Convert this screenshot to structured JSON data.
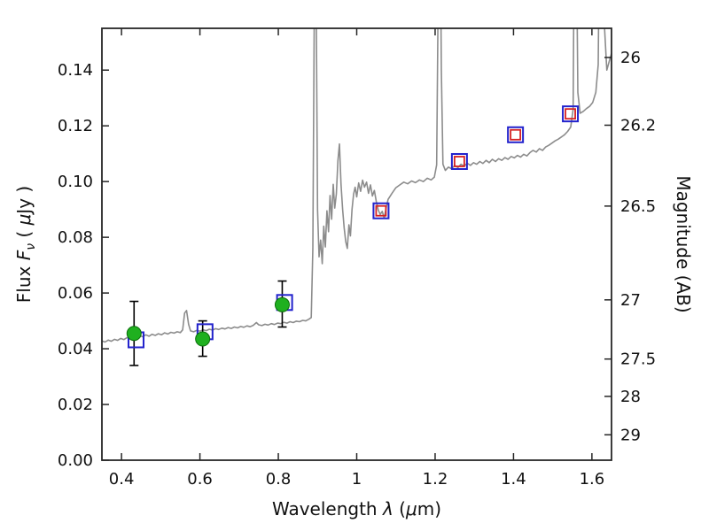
{
  "chart_data": {
    "type": "line+scatter",
    "title": "",
    "xlabel_parts": [
      {
        "t": "Wavelength  ",
        "style": "n"
      },
      {
        "t": "λ",
        "style": "i"
      },
      {
        "t": " (",
        "style": "n"
      },
      {
        "t": "μ",
        "style": "i"
      },
      {
        "t": "m)",
        "style": "n"
      }
    ],
    "ylabel_left_parts": [
      {
        "t": "Flux  ",
        "style": "n"
      },
      {
        "t": "F",
        "style": "i"
      },
      {
        "t": "ν",
        "style": "sub"
      },
      {
        "t": "  ( ",
        "style": "n"
      },
      {
        "t": "μ",
        "style": "i"
      },
      {
        "t": "Jy )",
        "style": "n"
      }
    ],
    "ylabel_right": "Magnitude (AB)",
    "xlim": [
      0.35,
      1.65
    ],
    "ylim": [
      0.0,
      0.155
    ],
    "x_ticks": [
      {
        "v": 0.4,
        "label": "0.4"
      },
      {
        "v": 0.6,
        "label": "0.6"
      },
      {
        "v": 0.8,
        "label": "0.8"
      },
      {
        "v": 1.0,
        "label": "1"
      },
      {
        "v": 1.2,
        "label": "1.2"
      },
      {
        "v": 1.4,
        "label": "1.4"
      },
      {
        "v": 1.6,
        "label": "1.6"
      }
    ],
    "y_ticks_left": [
      {
        "v": 0.0,
        "label": "0.00"
      },
      {
        "v": 0.02,
        "label": "0.02"
      },
      {
        "v": 0.04,
        "label": "0.04"
      },
      {
        "v": 0.06,
        "label": "0.06"
      },
      {
        "v": 0.08,
        "label": "0.08"
      },
      {
        "v": 0.1,
        "label": "0.10"
      },
      {
        "v": 0.12,
        "label": "0.12"
      },
      {
        "v": 0.14,
        "label": "0.14"
      }
    ],
    "mag_zeropoint": 23.9,
    "y_ticks_right": [
      {
        "m": 26.0,
        "label": "26"
      },
      {
        "m": 26.2,
        "label": "26.2"
      },
      {
        "m": 26.5,
        "label": "26.5"
      },
      {
        "m": 27.0,
        "label": "27"
      },
      {
        "m": 27.5,
        "label": "27.5"
      },
      {
        "m": 28.0,
        "label": "28"
      },
      {
        "m": 29.0,
        "label": "29"
      }
    ],
    "colors": {
      "spectrum": "#8c8c8c",
      "frame": "#262626",
      "tick_label": "#111111",
      "errorbar": "#000000",
      "green_fill": "#1fb01f",
      "green_edge": "#0b6e0b",
      "blue_square": "#2222cc",
      "red_square": "#d62222"
    },
    "spectrum_points": [
      [
        0.35,
        0.0428
      ],
      [
        0.358,
        0.0424
      ],
      [
        0.366,
        0.0431
      ],
      [
        0.374,
        0.0427
      ],
      [
        0.382,
        0.0434
      ],
      [
        0.39,
        0.043
      ],
      [
        0.398,
        0.0437
      ],
      [
        0.406,
        0.0433
      ],
      [
        0.414,
        0.044
      ],
      [
        0.422,
        0.0437
      ],
      [
        0.43,
        0.0443
      ],
      [
        0.438,
        0.044
      ],
      [
        0.446,
        0.0447
      ],
      [
        0.454,
        0.0443
      ],
      [
        0.462,
        0.045
      ],
      [
        0.47,
        0.0445
      ],
      [
        0.478,
        0.0452
      ],
      [
        0.486,
        0.0448
      ],
      [
        0.494,
        0.0454
      ],
      [
        0.502,
        0.045
      ],
      [
        0.51,
        0.0457
      ],
      [
        0.518,
        0.0453
      ],
      [
        0.526,
        0.0459
      ],
      [
        0.534,
        0.0456
      ],
      [
        0.542,
        0.0461
      ],
      [
        0.55,
        0.0458
      ],
      [
        0.556,
        0.0468
      ],
      [
        0.561,
        0.0528
      ],
      [
        0.566,
        0.0537
      ],
      [
        0.571,
        0.0488
      ],
      [
        0.576,
        0.0464
      ],
      [
        0.584,
        0.0461
      ],
      [
        0.592,
        0.0466
      ],
      [
        0.6,
        0.0463
      ],
      [
        0.608,
        0.0468
      ],
      [
        0.616,
        0.0465
      ],
      [
        0.624,
        0.047
      ],
      [
        0.632,
        0.0467
      ],
      [
        0.64,
        0.0472
      ],
      [
        0.648,
        0.0469
      ],
      [
        0.656,
        0.0474
      ],
      [
        0.664,
        0.0471
      ],
      [
        0.672,
        0.0476
      ],
      [
        0.68,
        0.0473
      ],
      [
        0.688,
        0.0478
      ],
      [
        0.696,
        0.0475
      ],
      [
        0.704,
        0.048
      ],
      [
        0.712,
        0.0477
      ],
      [
        0.72,
        0.0482
      ],
      [
        0.728,
        0.0479
      ],
      [
        0.736,
        0.0484
      ],
      [
        0.744,
        0.0494
      ],
      [
        0.75,
        0.0486
      ],
      [
        0.758,
        0.0483
      ],
      [
        0.766,
        0.0488
      ],
      [
        0.774,
        0.0485
      ],
      [
        0.782,
        0.049
      ],
      [
        0.79,
        0.0487
      ],
      [
        0.798,
        0.0492
      ],
      [
        0.806,
        0.049
      ],
      [
        0.814,
        0.0495
      ],
      [
        0.822,
        0.0492
      ],
      [
        0.83,
        0.0497
      ],
      [
        0.838,
        0.0494
      ],
      [
        0.846,
        0.0499
      ],
      [
        0.854,
        0.0497
      ],
      [
        0.862,
        0.0502
      ],
      [
        0.87,
        0.05
      ],
      [
        0.878,
        0.0506
      ],
      [
        0.884,
        0.0512
      ],
      [
        0.888,
        0.076
      ],
      [
        0.891,
        0.145
      ],
      [
        0.894,
        0.21
      ],
      [
        0.897,
        0.16
      ],
      [
        0.9,
        0.09
      ],
      [
        0.904,
        0.073
      ],
      [
        0.908,
        0.079
      ],
      [
        0.912,
        0.0705
      ],
      [
        0.916,
        0.084
      ],
      [
        0.92,
        0.0765
      ],
      [
        0.924,
        0.0895
      ],
      [
        0.928,
        0.082
      ],
      [
        0.932,
        0.095
      ],
      [
        0.936,
        0.0865
      ],
      [
        0.94,
        0.099
      ],
      [
        0.944,
        0.0905
      ],
      [
        0.948,
        0.0955
      ],
      [
        0.952,
        0.1075
      ],
      [
        0.956,
        0.1135
      ],
      [
        0.96,
        0.099
      ],
      [
        0.964,
        0.09
      ],
      [
        0.968,
        0.0835
      ],
      [
        0.972,
        0.0785
      ],
      [
        0.976,
        0.076
      ],
      [
        0.98,
        0.0845
      ],
      [
        0.984,
        0.0805
      ],
      [
        0.988,
        0.09
      ],
      [
        0.992,
        0.0955
      ],
      [
        0.996,
        0.098
      ],
      [
        1.0,
        0.0945
      ],
      [
        1.005,
        0.0995
      ],
      [
        1.01,
        0.0965
      ],
      [
        1.015,
        0.1005
      ],
      [
        1.02,
        0.098
      ],
      [
        1.025,
        0.0998
      ],
      [
        1.03,
        0.0958
      ],
      [
        1.035,
        0.0988
      ],
      [
        1.04,
        0.0948
      ],
      [
        1.045,
        0.0968
      ],
      [
        1.05,
        0.0928
      ],
      [
        1.055,
        0.0898
      ],
      [
        1.06,
        0.0882
      ],
      [
        1.065,
        0.0893
      ],
      [
        1.07,
        0.0868
      ],
      [
        1.075,
        0.0906
      ],
      [
        1.08,
        0.0936
      ],
      [
        1.09,
        0.0958
      ],
      [
        1.1,
        0.0978
      ],
      [
        1.11,
        0.0988
      ],
      [
        1.12,
        0.0998
      ],
      [
        1.13,
        0.0992
      ],
      [
        1.14,
        0.1002
      ],
      [
        1.15,
        0.0996
      ],
      [
        1.16,
        0.1006
      ],
      [
        1.17,
        0.1
      ],
      [
        1.18,
        0.1012
      ],
      [
        1.19,
        0.1006
      ],
      [
        1.198,
        0.1016
      ],
      [
        1.204,
        0.106
      ],
      [
        1.208,
        0.17
      ],
      [
        1.212,
        0.21
      ],
      [
        1.216,
        0.14
      ],
      [
        1.22,
        0.1062
      ],
      [
        1.226,
        0.104
      ],
      [
        1.234,
        0.1052
      ],
      [
        1.242,
        0.1046
      ],
      [
        1.25,
        0.1058
      ],
      [
        1.258,
        0.105
      ],
      [
        1.266,
        0.1062
      ],
      [
        1.274,
        0.1055
      ],
      [
        1.282,
        0.1066
      ],
      [
        1.29,
        0.1058
      ],
      [
        1.298,
        0.1068
      ],
      [
        1.306,
        0.1062
      ],
      [
        1.314,
        0.1072
      ],
      [
        1.322,
        0.1065
      ],
      [
        1.33,
        0.1076
      ],
      [
        1.338,
        0.1068
      ],
      [
        1.346,
        0.108
      ],
      [
        1.354,
        0.1072
      ],
      [
        1.362,
        0.1082
      ],
      [
        1.37,
        0.1076
      ],
      [
        1.378,
        0.1086
      ],
      [
        1.386,
        0.108
      ],
      [
        1.394,
        0.109
      ],
      [
        1.402,
        0.1085
      ],
      [
        1.41,
        0.1094
      ],
      [
        1.418,
        0.1088
      ],
      [
        1.426,
        0.1098
      ],
      [
        1.434,
        0.1092
      ],
      [
        1.442,
        0.1104
      ],
      [
        1.45,
        0.1112
      ],
      [
        1.458,
        0.1106
      ],
      [
        1.466,
        0.1118
      ],
      [
        1.474,
        0.1112
      ],
      [
        1.482,
        0.1124
      ],
      [
        1.49,
        0.113
      ],
      [
        1.498,
        0.1138
      ],
      [
        1.506,
        0.1146
      ],
      [
        1.514,
        0.1152
      ],
      [
        1.522,
        0.116
      ],
      [
        1.53,
        0.1168
      ],
      [
        1.538,
        0.118
      ],
      [
        1.546,
        0.1196
      ],
      [
        1.552,
        0.126
      ],
      [
        1.556,
        0.21
      ],
      [
        1.56,
        0.195
      ],
      [
        1.564,
        0.132
      ],
      [
        1.57,
        0.1245
      ],
      [
        1.578,
        0.1252
      ],
      [
        1.586,
        0.1262
      ],
      [
        1.594,
        0.127
      ],
      [
        1.602,
        0.1284
      ],
      [
        1.61,
        0.132
      ],
      [
        1.616,
        0.142
      ],
      [
        1.62,
        0.2
      ],
      [
        1.626,
        0.21
      ],
      [
        1.632,
        0.156
      ],
      [
        1.638,
        0.14
      ],
      [
        1.644,
        0.143
      ],
      [
        1.65,
        0.146
      ]
    ],
    "observed_photometry_green_circles": [
      {
        "x": 0.432,
        "y": 0.0455,
        "err_lo": 0.0115,
        "err_hi": 0.0115
      },
      {
        "x": 0.607,
        "y": 0.0435,
        "err_lo": 0.0062,
        "err_hi": 0.0065
      },
      {
        "x": 0.81,
        "y": 0.0558,
        "err_lo": 0.008,
        "err_hi": 0.0085
      }
    ],
    "model_photometry_blue_squares": [
      {
        "x": 0.437,
        "y": 0.0432
      },
      {
        "x": 0.613,
        "y": 0.0461
      },
      {
        "x": 0.816,
        "y": 0.0566
      },
      {
        "x": 1.062,
        "y": 0.0895
      },
      {
        "x": 1.262,
        "y": 0.1072
      },
      {
        "x": 1.405,
        "y": 0.1168
      },
      {
        "x": 1.545,
        "y": 0.1243
      }
    ],
    "model_photometry_red_squares": [
      {
        "x": 1.062,
        "y": 0.0895
      },
      {
        "x": 1.262,
        "y": 0.1072
      },
      {
        "x": 1.405,
        "y": 0.1168
      },
      {
        "x": 1.545,
        "y": 0.1243
      }
    ]
  }
}
